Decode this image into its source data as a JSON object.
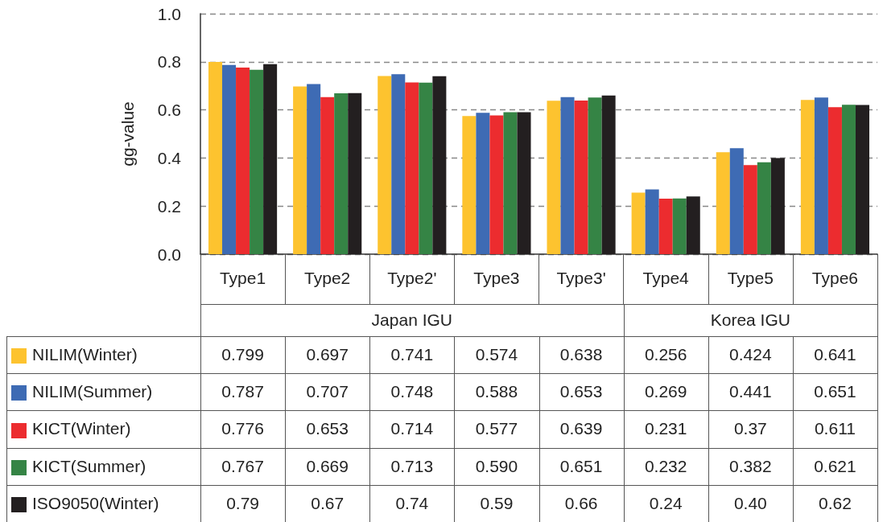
{
  "chart_data": {
    "type": "bar",
    "ylabel": "gg-value",
    "categories": [
      "Type1",
      "Type2",
      "Type2'",
      "Type3",
      "Type3'",
      "Type4",
      "Type5",
      "Type6"
    ],
    "series": [
      {
        "name": "NILIM(Winter)",
        "color": "#fdc32f",
        "values": [
          0.799,
          0.697,
          0.741,
          0.574,
          0.638,
          0.256,
          0.424,
          0.641
        ],
        "value_labels": [
          "0.799",
          "0.697",
          "0.741",
          "0.574",
          "0.638",
          "0.256",
          "0.424",
          "0.641"
        ]
      },
      {
        "name": "NILIM(Summer)",
        "color": "#3e6bb4",
        "values": [
          0.787,
          0.707,
          0.748,
          0.588,
          0.653,
          0.269,
          0.441,
          0.651
        ],
        "value_labels": [
          "0.787",
          "0.707",
          "0.748",
          "0.588",
          "0.653",
          "0.269",
          "0.441",
          "0.651"
        ]
      },
      {
        "name": "KICT(Winter)",
        "color": "#ec2c2f",
        "values": [
          0.776,
          0.653,
          0.714,
          0.577,
          0.639,
          0.231,
          0.37,
          0.611
        ],
        "value_labels": [
          "0.776",
          "0.653",
          "0.714",
          "0.577",
          "0.639",
          "0.231",
          "0.37",
          "0.611"
        ]
      },
      {
        "name": "KICT(Summer)",
        "color": "#358445",
        "values": [
          0.767,
          0.669,
          0.713,
          0.59,
          0.651,
          0.232,
          0.382,
          0.621
        ],
        "value_labels": [
          "0.767",
          "0.669",
          "0.713",
          "0.590",
          "0.651",
          "0.232",
          "0.382",
          "0.621"
        ]
      },
      {
        "name": "ISO9050(Winter)",
        "color": "#231f20",
        "values": [
          0.79,
          0.67,
          0.74,
          0.59,
          0.66,
          0.24,
          0.4,
          0.62
        ],
        "value_labels": [
          "0.79",
          "0.67",
          "0.74",
          "0.59",
          "0.66",
          "0.24",
          "0.40",
          "0.62"
        ]
      }
    ],
    "ylim": [
      0,
      1
    ],
    "yticks": [
      {
        "value": 0,
        "label": "0.0"
      },
      {
        "value": 0.2,
        "label": "0.2"
      },
      {
        "value": 0.4,
        "label": "0.4"
      },
      {
        "value": 0.6,
        "label": "0.6"
      },
      {
        "value": 0.8,
        "label": "0.8"
      },
      {
        "value": 1,
        "label": "1.0"
      }
    ],
    "grid": "y",
    "legend": "bottom left",
    "annotations": [
      "Japan IGU",
      "Korea IGU"
    ]
  }
}
